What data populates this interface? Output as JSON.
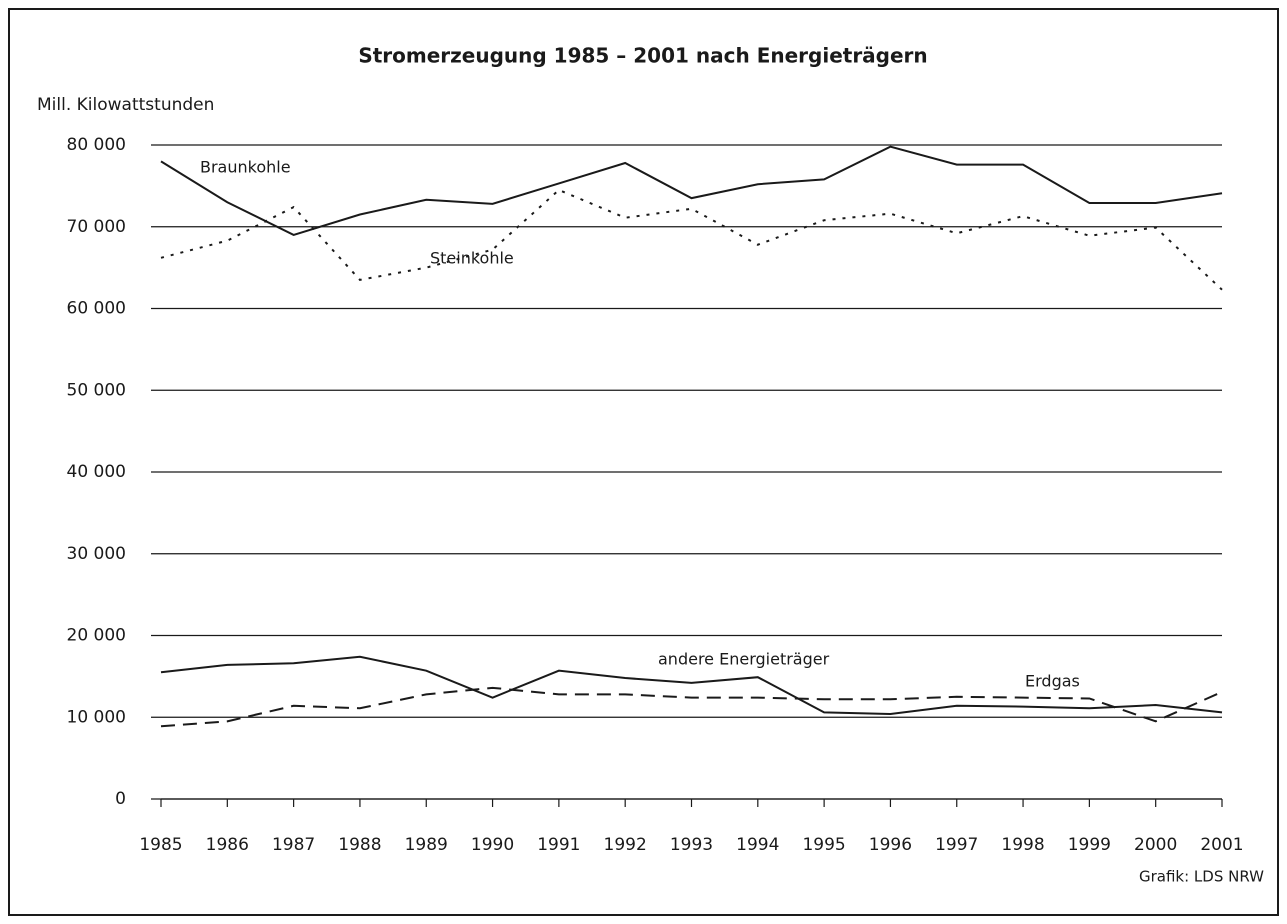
{
  "chart_data": {
    "type": "line",
    "title": "Stromerzeugung 1985 – 2001 nach Energieträgern",
    "y_label": "Mill. Kilowattstunden",
    "source": "Grafik: LDS NRW",
    "categories": [
      "1985",
      "1986",
      "1987",
      "1988",
      "1989",
      "1990",
      "1991",
      "1992",
      "1993",
      "1994",
      "1995",
      "1996",
      "1997",
      "1998",
      "1999",
      "2000",
      "2001"
    ],
    "ylim": [
      0,
      80000
    ],
    "yticks": [
      0,
      {
        "value": 10000,
        "label": "10 000"
      },
      {
        "value": 20000,
        "label": "20 000"
      },
      {
        "value": 30000,
        "label": "30 000"
      },
      {
        "value": 40000,
        "label": "40 000"
      },
      {
        "value": 50000,
        "label": "50 000"
      },
      {
        "value": 60000,
        "label": "60 000"
      },
      {
        "value": 70000,
        "label": "70 000"
      },
      {
        "value": 80000,
        "label": "80 000"
      }
    ],
    "grid": true,
    "series": [
      {
        "name": "Braunkohle",
        "color": "#1a1a1a",
        "dash": "solid",
        "values": [
          78000,
          73000,
          69000,
          71500,
          73300,
          72800,
          75300,
          77800,
          73500,
          75200,
          75800,
          79800,
          77600,
          77600,
          72900,
          72900,
          74100
        ]
      },
      {
        "name": "Steinkohle",
        "color": "#1a1a1a",
        "dash": "dotted",
        "values": [
          66200,
          68300,
          72400,
          63500,
          65000,
          67200,
          74500,
          71100,
          72200,
          67800,
          70800,
          71600,
          69200,
          71300,
          68900,
          69900,
          62300
        ]
      },
      {
        "name": "andere Energieträger",
        "color": "#1a1a1a",
        "dash": "solid",
        "values": [
          15500,
          16400,
          16600,
          17400,
          15700,
          12400,
          15700,
          14800,
          14200,
          14900,
          10600,
          10400,
          11400,
          11300,
          11100,
          11500,
          10600
        ]
      },
      {
        "name": "Erdgas",
        "color": "#1a1a1a",
        "dash": "dashed",
        "values": [
          8900,
          9500,
          11400,
          11100,
          12800,
          13600,
          12800,
          12800,
          12400,
          12400,
          12200,
          12200,
          12500,
          12400,
          12300,
          9500,
          13100
        ]
      }
    ]
  }
}
